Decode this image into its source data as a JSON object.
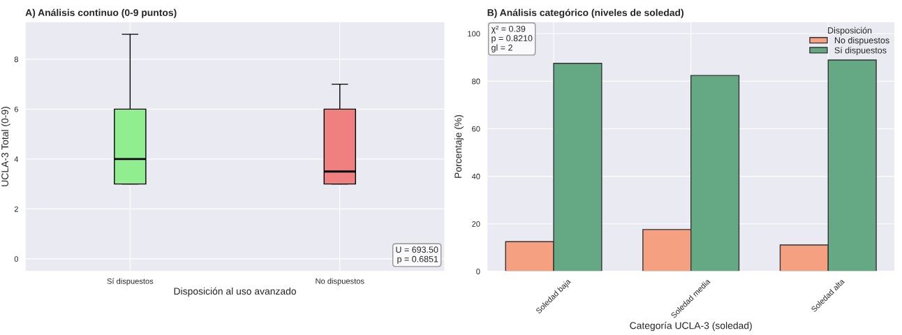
{
  "chart_data": [
    {
      "type": "box",
      "title": "A) Análisis continuo (0-9 puntos)",
      "xlabel": "Disposición al uso avanzado",
      "ylabel": "UCLA-3 Total (0-9)",
      "categories": [
        "Sí dispuestos",
        "No dispuestos"
      ],
      "boxes": [
        {
          "low": 3,
          "q1": 3,
          "median": 4,
          "q3": 6,
          "high": 9
        },
        {
          "low": 3,
          "q1": 3,
          "median": 3.5,
          "q3": 6,
          "high": 7
        }
      ],
      "colors": [
        "#90ee90",
        "#f08080"
      ],
      "ylim": [
        -0.5,
        9.5
      ],
      "yticks": [
        0,
        2,
        4,
        6,
        8
      ],
      "grid": true,
      "annotations": [
        "U = 693.50\np = 0.6851"
      ]
    },
    {
      "type": "bar",
      "title": "B) Análisis categórico (niveles de soledad)",
      "xlabel": "Categoría UCLA-3 (soledad)",
      "ylabel": "Porcentaje (%)",
      "categories": [
        "Soledad baja",
        "Soledad media",
        "Soledad alta"
      ],
      "series": [
        {
          "name": "No dispuestos",
          "color": "#f6a082",
          "values": [
            12.5,
            17.6,
            11.1
          ]
        },
        {
          "name": "Sí dispuestos",
          "color": "#64a884",
          "values": [
            87.5,
            82.4,
            88.9
          ]
        }
      ],
      "legend_title": "Disposición",
      "legend": "top right",
      "ylim": [
        0,
        105
      ],
      "yticks": [
        0,
        20,
        40,
        60,
        80,
        100
      ],
      "grid": true,
      "annotations": [
        "χ² = 0.39\np = 0.8210\ngl = 2"
      ]
    }
  ]
}
